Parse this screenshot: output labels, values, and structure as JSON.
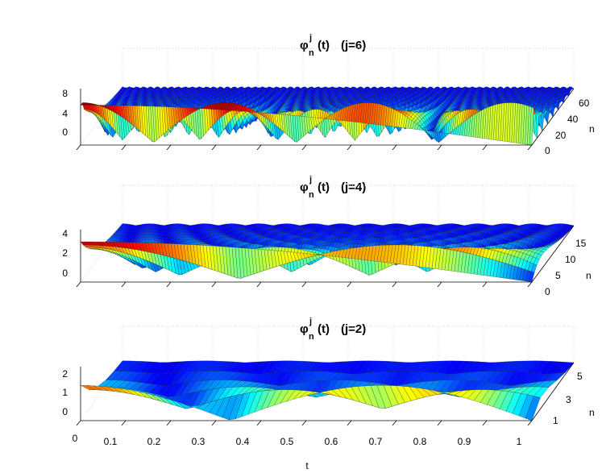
{
  "chart_data": [
    {
      "type": "surface",
      "title": {
        "symbol": "φ",
        "sup": "j",
        "sub": "n",
        "arg": "(t)",
        "param": "(j=6)"
      },
      "j": 6,
      "xlabel": "",
      "ylabel": "n",
      "xlim": [
        0,
        1
      ],
      "ylim": [
        0,
        64
      ],
      "zlim": [
        0,
        8
      ],
      "zticks": [
        "0",
        "4",
        "8"
      ],
      "yticks": [
        "0",
        "20",
        "40",
        "60"
      ],
      "grid": true,
      "colormap": "jet"
    },
    {
      "type": "surface",
      "title": {
        "symbol": "φ",
        "sup": "j",
        "sub": "n",
        "arg": "(t)",
        "param": "(j=4)"
      },
      "j": 4,
      "xlabel": "",
      "ylabel": "n",
      "xlim": [
        0,
        1
      ],
      "ylim": [
        0,
        16
      ],
      "zlim": [
        0,
        4
      ],
      "zticks": [
        "0",
        "2",
        "4"
      ],
      "yticks": [
        "0",
        "5",
        "10",
        "15"
      ],
      "grid": true,
      "colormap": "jet"
    },
    {
      "type": "surface",
      "title": {
        "symbol": "φ",
        "sup": "j",
        "sub": "n",
        "arg": "(t)",
        "param": "(j=2)"
      },
      "j": 2,
      "xlabel": "t",
      "ylabel": "n",
      "xlim": [
        0,
        1
      ],
      "ylim": [
        1,
        5
      ],
      "zlim": [
        0,
        2
      ],
      "zticks": [
        "0",
        "1",
        "2"
      ],
      "yticks": [
        "1",
        "3",
        "5"
      ],
      "xticks": [
        "0",
        "0.1",
        "0.2",
        "0.3",
        "0.4",
        "0.5",
        "0.6",
        "0.7",
        "0.8",
        "0.9",
        "1"
      ],
      "grid": true,
      "colormap": "jet"
    }
  ]
}
